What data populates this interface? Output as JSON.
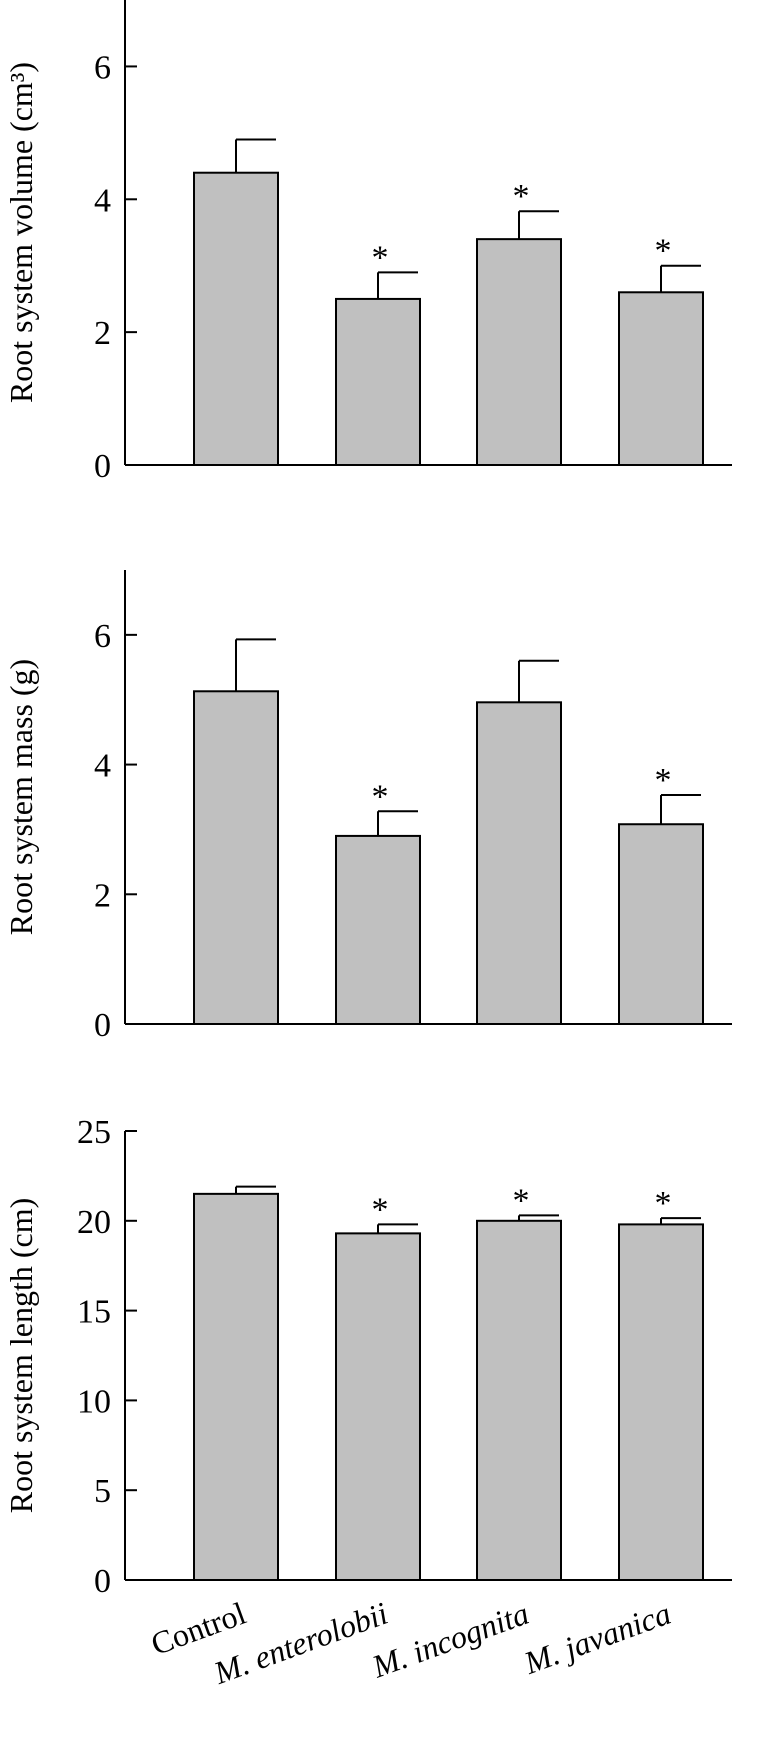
{
  "colors": {
    "bar_fill": "#c0c0c0",
    "stroke": "#000000",
    "background": "#ffffff"
  },
  "categories": [
    "Control",
    "M. enterolobii",
    "M. incognita",
    "M. javanica"
  ],
  "chart_data": [
    {
      "type": "bar",
      "title": "",
      "ylabel": "Root system volume (cm³)",
      "xlabel": "",
      "ylim": [
        0,
        7
      ],
      "yticks": [
        0,
        2,
        4,
        6
      ],
      "categories": [
        "Control",
        "M. enterolobii",
        "M. incognita",
        "M. javanica"
      ],
      "values": [
        4.4,
        2.5,
        3.4,
        2.6
      ],
      "errors": [
        0.5,
        0.4,
        0.42,
        0.4
      ],
      "significance": [
        "",
        "*",
        "*",
        "*"
      ],
      "grid": false
    },
    {
      "type": "bar",
      "title": "",
      "ylabel": "Root system mass (g)",
      "xlabel": "",
      "ylim": [
        0,
        7
      ],
      "yticks": [
        0,
        2,
        4,
        6
      ],
      "categories": [
        "Control",
        "M. enterolobii",
        "M. incognita",
        "M. javanica"
      ],
      "values": [
        5.13,
        2.9,
        4.96,
        3.08
      ],
      "errors": [
        0.8,
        0.38,
        0.64,
        0.45
      ],
      "significance": [
        "",
        "*",
        "",
        "*"
      ],
      "grid": false
    },
    {
      "type": "bar",
      "title": "",
      "ylabel": "Root system length (cm)",
      "xlabel": "",
      "ylim": [
        0,
        25
      ],
      "yticks": [
        0,
        5,
        10,
        15,
        20,
        25
      ],
      "categories": [
        "Control",
        "M. enterolobii",
        "M. incognita",
        "M. javanica"
      ],
      "values": [
        21.5,
        19.3,
        20.0,
        19.8
      ],
      "errors": [
        0.4,
        0.5,
        0.3,
        0.35
      ],
      "significance": [
        "",
        "*",
        "*",
        "*"
      ],
      "grid": false
    }
  ]
}
